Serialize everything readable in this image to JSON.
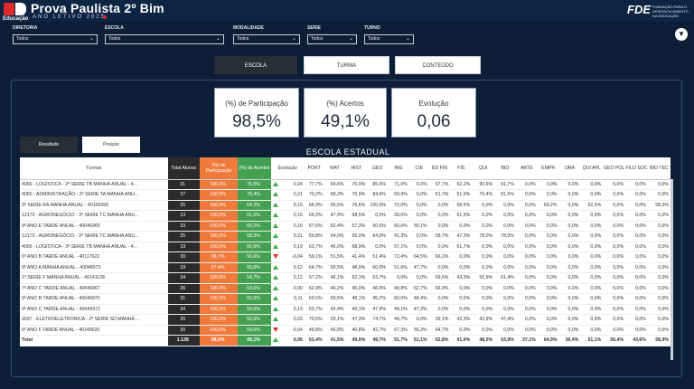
{
  "header": {
    "title": "Prova Paulista 2º Bim",
    "subtitle": "ANO LETIVO 2025",
    "logo_caption": "Educação",
    "partner_logo": "FDE",
    "partner_text": "FUNDAÇÃO PARA O DESENVOLVIMENTO DA EDUCAÇÃO"
  },
  "filters": [
    {
      "label": "DIRETORIA",
      "value": "Todos"
    },
    {
      "label": "ESCOLA",
      "value": "Todos"
    },
    {
      "label": "MODALIDADE",
      "value": "Todos"
    },
    {
      "label": "SERIE",
      "value": "Todos"
    },
    {
      "label": "TURNO",
      "value": "Todos"
    }
  ],
  "tabs": {
    "escola": "ESCOLA",
    "turma": "TURMA",
    "conteudo": "CONTEÚDO"
  },
  "cards": {
    "participacao": {
      "label": "(%) de Participação",
      "value": "98,5%"
    },
    "acertos": {
      "label": "(%) Acertos",
      "value": "49,1%"
    },
    "evolucao": {
      "label": "Evolução",
      "value": "0,06"
    }
  },
  "subtabs": {
    "resultado": "Resultado",
    "posicao": "Posição"
  },
  "table_title": "ESCOLA ESTADUAL",
  "columns": [
    "Turmas",
    "Total Alunos",
    "(%) de Participação",
    "(%) de Acertos",
    "Evolução",
    "PORT",
    "MAT",
    "HIST",
    "GEO",
    "ING",
    "CIE",
    "ED FIN",
    "FÍS",
    "QUI",
    "BIO",
    "ARTE",
    "EMPR",
    "ORA",
    "QUI APL",
    "GEO POL",
    "FILO SOC",
    "BIO TEC"
  ],
  "rows": [
    [
      "4056 - LOGÍSTICA - 2ª SERIE TB MANHA ANUAL - 4...",
      "31",
      "100,0%",
      "75,5%",
      "up",
      "0,24",
      "77,7%",
      "69,6%",
      "76,9%",
      "85,5%",
      "71,0%",
      "0,0%",
      "67,7%",
      "62,2%",
      "90,6%",
      "91,7%",
      "0,0%",
      "0,0%",
      "0,0%",
      "0,0%",
      "0,0%",
      "0,0%",
      "0,0%"
    ],
    [
      "4050 - ADMINISTRAÇÃO - 2ª SERIE TA MANHA ANU...",
      "27",
      "100,0%",
      "70,4%",
      "up",
      "0,21",
      "70,2%",
      "68,3%",
      "76,9%",
      "84,6%",
      "69,9%",
      "0,0%",
      "61,7%",
      "51,9%",
      "70,4%",
      "81,5%",
      "0,0%",
      "0,0%",
      "0,0%",
      "0,0%",
      "0,0%",
      "0,0%",
      "0,0%"
    ],
    [
      "3ª SERIE RA MANHA ANUAL - 40100268",
      "25",
      "100,0%",
      "64,2%",
      "up",
      "0,15",
      "66,9%",
      "56,5%",
      "76,6%",
      "100,0%",
      "72,0%",
      "0,0%",
      "0,0%",
      "68,5%",
      "0,0%",
      "0,0%",
      "0,0%",
      "69,2%",
      "0,0%",
      "62,5%",
      "0,0%",
      "0,0%",
      "58,3%"
    ],
    [
      "12173 - AGRONEGÓCIO - 3ª SERIE TC MANHA ANU...",
      "13",
      "100,0%",
      "61,5%",
      "up",
      "0,16",
      "69,2%",
      "47,9%",
      "68,5%",
      "0,0%",
      "39,6%",
      "0,0%",
      "0,0%",
      "61,5%",
      "0,0%",
      "0,0%",
      "0,0%",
      "0,0%",
      "0,0%",
      "0,0%",
      "0,0%",
      "0,0%",
      "0,0%"
    ],
    [
      "9º ANO E TARDE ANUAL - 40046969",
      "33",
      "100,0%",
      "60,2%",
      "up",
      "0,16",
      "67,6%",
      "52,4%",
      "57,3%",
      "60,6%",
      "60,6%",
      "59,1%",
      "0,0%",
      "0,0%",
      "0,0%",
      "0,0%",
      "0,0%",
      "0,0%",
      "0,0%",
      "0,0%",
      "0,0%",
      "0,0%",
      "0,0%"
    ],
    [
      "12173 - AGRONEGÓCIO - 2ª SERIE TC MANHA ANU...",
      "25",
      "100,0%",
      "58,3%",
      "up",
      "0,21",
      "59,8%",
      "54,0%",
      "56,0%",
      "64,0%",
      "41,3%",
      "0,0%",
      "58,7%",
      "47,3%",
      "78,0%",
      "78,0%",
      "0,0%",
      "0,0%",
      "0,0%",
      "0,0%",
      "0,0%",
      "0,0%",
      "0,0%"
    ],
    [
      "4056 - LOGÍSTICA - 3ª SERIE TB MANHA ANUAL - 4...",
      "19",
      "100,0%",
      "56,6%",
      "up",
      "0,19",
      "63,7%",
      "45,0%",
      "68,9%",
      "0,0%",
      "57,1%",
      "0,0%",
      "0,0%",
      "61,7%",
      "0,0%",
      "0,0%",
      "0,0%",
      "0,0%",
      "0,0%",
      "0,0%",
      "0,0%",
      "0,0%",
      "0,0%"
    ],
    [
      "6º ANO B TARDE ANUAL - 40117622",
      "30",
      "96,7%",
      "56,6%",
      "down",
      "-0,04",
      "59,1%",
      "51,5%",
      "41,4%",
      "51,4%",
      "72,4%",
      "64,5%",
      "66,2%",
      "0,0%",
      "0,0%",
      "0,0%",
      "0,0%",
      "0,0%",
      "0,0%",
      "0,0%",
      "0,0%",
      "0,0%",
      "0,0%"
    ],
    [
      "9º ANO A MANHA ANUAL - 40048973",
      "19",
      "97,4%",
      "55,0%",
      "up",
      "0,12",
      "64,7%",
      "55,5%",
      "48,9%",
      "60,0%",
      "51,6%",
      "47,7%",
      "0,0%",
      "0,0%",
      "0,0%",
      "0,0%",
      "0,0%",
      "0,0%",
      "0,0%",
      "0,0%",
      "0,0%",
      "0,0%",
      "0,0%"
    ],
    [
      "1ª SERIE F MANHA ANUAL - 40141128",
      "34",
      "100,0%",
      "54,7%",
      "up",
      "0,12",
      "57,2%",
      "46,1%",
      "62,1%",
      "53,7%",
      "0,0%",
      "0,0%",
      "69,6%",
      "43,3%",
      "55,5%",
      "61,4%",
      "0,0%",
      "0,0%",
      "0,0%",
      "0,0%",
      "0,0%",
      "0,0%",
      "0,0%"
    ],
    [
      "7º ANO C TARDE ANUAL - 40046967",
      "26",
      "100,0%",
      "53,6%",
      "up",
      "0,00",
      "62,9%",
      "46,2%",
      "45,0%",
      "46,9%",
      "40,8%",
      "52,7%",
      "66,9%",
      "0,0%",
      "0,0%",
      "0,0%",
      "0,0%",
      "0,0%",
      "0,0%",
      "0,0%",
      "0,0%",
      "0,0%",
      "0,0%"
    ],
    [
      "9º ANO B TARDE ANUAL - 40046970",
      "31",
      "100,0%",
      "52,6%",
      "up",
      "0,11",
      "60,5%",
      "50,5%",
      "48,1%",
      "45,2%",
      "60,0%",
      "48,4%",
      "0,0%",
      "0,0%",
      "0,0%",
      "0,0%",
      "0,0%",
      "0,0%",
      "0,0%",
      "0,0%",
      "0,0%",
      "0,0%",
      "0,0%"
    ],
    [
      "9º ANO C TARDE ANUAL - 40046972",
      "34",
      "100,0%",
      "50,6%",
      "up",
      "0,13",
      "63,7%",
      "42,4%",
      "49,1%",
      "47,9%",
      "44,1%",
      "47,3%",
      "0,0%",
      "0,0%",
      "0,0%",
      "0,0%",
      "0,0%",
      "0,0%",
      "0,0%",
      "0,0%",
      "0,0%",
      "0,0%",
      "0,0%"
    ],
    [
      "3037 - ELETROELETRONICA - 2ª SERIE SD MANHA ...",
      "26",
      "100,0%",
      "50,5%",
      "up",
      "0,03",
      "70,5%",
      "29,1%",
      "47,3%",
      "74,7%",
      "44,7%",
      "0,0%",
      "39,1%",
      "42,3%",
      "42,9%",
      "47,4%",
      "0,0%",
      "0,0%",
      "0,0%",
      "0,0%",
      "0,0%",
      "0,0%",
      "0,0%"
    ],
    [
      "6º ANO F TARDE ANUAL - 40149626",
      "30",
      "100,0%",
      "50,0%",
      "down",
      "-0,04",
      "49,8%",
      "45,8%",
      "40,8%",
      "42,7%",
      "67,3%",
      "56,3%",
      "64,7%",
      "0,0%",
      "0,0%",
      "0,0%",
      "0,0%",
      "0,0%",
      "0,0%",
      "0,0%",
      "0,0%",
      "0,0%",
      "0,0%"
    ]
  ],
  "total": [
    "Total",
    "1.139",
    "98,5%",
    "49,1%",
    "up",
    "0,06",
    "53,4%",
    "41,5%",
    "49,0%",
    "49,7%",
    "51,7%",
    "51,1%",
    "52,8%",
    "41,0%",
    "48,5%",
    "53,9%",
    "37,1%",
    "64,9%",
    "36,4%",
    "51,1%",
    "56,4%",
    "43,6%",
    "58,9%"
  ]
}
